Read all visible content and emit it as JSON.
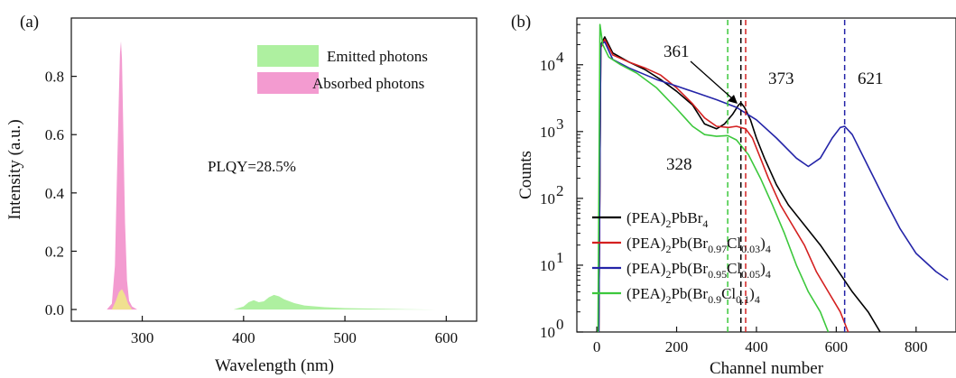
{
  "chart_data": [
    {
      "type": "area",
      "panel_label": "(a)",
      "xlabel": "Wavelength (nm)",
      "ylabel": "Intensity (a.u.)",
      "xlim": [
        230,
        630
      ],
      "ylim": [
        -0.04,
        1.0
      ],
      "xticks": [
        "300",
        "400",
        "500",
        "600"
      ],
      "xtick_values": [
        300,
        400,
        500,
        600
      ],
      "yticks": [
        "0.0",
        "0.2",
        "0.4",
        "0.6",
        "0.8"
      ],
      "ytick_values": [
        0.0,
        0.2,
        0.4,
        0.6,
        0.8
      ],
      "annotation": "PLQY=28.5%",
      "legend": [
        {
          "name": "Emitted  photons",
          "color": "#aef0a0"
        },
        {
          "name": "Absorbed photons",
          "color": "#f39bd0"
        }
      ],
      "series": [
        {
          "name": "Absorbed photons",
          "color": "#f39bd0",
          "x": [
            250,
            265,
            270,
            273,
            275,
            277,
            278,
            279,
            280,
            281,
            282,
            283,
            285,
            287,
            290,
            295,
            300,
            310
          ],
          "y": [
            0.0,
            0.0,
            0.02,
            0.15,
            0.45,
            0.75,
            0.88,
            0.92,
            0.86,
            0.68,
            0.48,
            0.3,
            0.1,
            0.03,
            0.01,
            0.0,
            0.0,
            0.0
          ]
        },
        {
          "name": "overlap",
          "color": "#f0e090",
          "x": [
            270,
            274,
            277,
            280,
            283,
            286,
            290
          ],
          "y": [
            0.0,
            0.03,
            0.06,
            0.07,
            0.05,
            0.02,
            0.0
          ]
        },
        {
          "name": "Emitted photons",
          "color": "#aef0a0",
          "x": [
            390,
            400,
            405,
            410,
            415,
            420,
            425,
            430,
            435,
            440,
            450,
            460,
            480,
            500,
            530,
            560,
            590,
            612
          ],
          "y": [
            0.0,
            0.01,
            0.025,
            0.032,
            0.025,
            0.028,
            0.042,
            0.05,
            0.045,
            0.035,
            0.022,
            0.014,
            0.008,
            0.005,
            0.003,
            0.001,
            0.0,
            0.0
          ]
        }
      ]
    },
    {
      "type": "line",
      "panel_label": "(b)",
      "xlabel": "Channel number",
      "ylabel": "Counts",
      "y_scale": "log",
      "xlim": [
        -50,
        900
      ],
      "ylim": [
        1,
        50000
      ],
      "xticks": [
        "0",
        "200",
        "400",
        "600",
        "800"
      ],
      "xtick_values": [
        0,
        200,
        400,
        600,
        800
      ],
      "ytick_exps": [
        "0",
        "1",
        "2",
        "3",
        "4"
      ],
      "ytick_values": [
        1,
        10,
        100,
        1000,
        10000
      ],
      "annotations": [
        {
          "text": "361",
          "color": "#000000",
          "x": 361
        },
        {
          "text": "373",
          "color": "#d42020",
          "x": 373
        },
        {
          "text": "621",
          "color": "#2424a8",
          "x": 621
        },
        {
          "text": "328",
          "color": "#3cc83c",
          "x": 328
        }
      ],
      "legend": [
        {
          "base": "(PEA)",
          "s1": "2",
          "m1": "PbBr",
          "s2": "4",
          "m2": "",
          "s3": "",
          "m3": "",
          "s4": "",
          "tail": "",
          "s5": ""
        },
        {
          "base": "(PEA)",
          "s1": "2",
          "m1": "Pb(Br",
          "s2": "0.97",
          "m2": "Cl",
          "s3": "0.03",
          "m3": ")",
          "s4": "4",
          "tail": "",
          "s5": ""
        },
        {
          "base": "(PEA)",
          "s1": "2",
          "m1": "Pb(Br",
          "s2": "0.95",
          "m2": "Cl",
          "s3": "0.05",
          "m3": ")",
          "s4": "4",
          "tail": "",
          "s5": ""
        },
        {
          "base": "(PEA)",
          "s1": "2",
          "m1": "Pb(Br",
          "s2": "0.9",
          "m2": "Cl",
          "s3": "0.1",
          "m3": ")",
          "s4": "4",
          "tail": "",
          "s5": ""
        }
      ],
      "series": [
        {
          "name": "(PEA)2PbBr4",
          "color": "#000000",
          "x": [
            5,
            10,
            20,
            40,
            80,
            120,
            160,
            200,
            240,
            270,
            300,
            320,
            340,
            355,
            361,
            370,
            385,
            400,
            420,
            450,
            480,
            520,
            560,
            600,
            640,
            680,
            710
          ],
          "y": [
            1,
            20000,
            26000,
            15000,
            11000,
            8500,
            6000,
            4000,
            2500,
            1300,
            1100,
            1300,
            1800,
            2500,
            2700,
            2300,
            1500,
            800,
            400,
            160,
            80,
            40,
            20,
            9,
            4,
            2,
            1
          ]
        },
        {
          "name": "(PEA)2Pb(Br0.97Cl0.03)4",
          "color": "#d42020",
          "x": [
            5,
            10,
            20,
            40,
            80,
            120,
            160,
            200,
            240,
            270,
            300,
            330,
            350,
            373,
            390,
            410,
            430,
            460,
            490,
            520,
            550,
            580,
            610,
            630
          ],
          "y": [
            1,
            18000,
            24000,
            14000,
            11000,
            9000,
            7000,
            4500,
            2600,
            1600,
            1200,
            1150,
            1200,
            1100,
            800,
            400,
            200,
            80,
            40,
            20,
            8,
            4,
            2,
            1
          ]
        },
        {
          "name": "(PEA)2Pb(Br0.95Cl0.05)4",
          "color": "#2424a8",
          "x": [
            5,
            10,
            20,
            40,
            80,
            150,
            200,
            250,
            300,
            350,
            400,
            450,
            500,
            530,
            560,
            590,
            610,
            621,
            640,
            680,
            720,
            760,
            800,
            850,
            880
          ],
          "y": [
            1,
            20000,
            22000,
            12000,
            9000,
            6000,
            4800,
            3800,
            3000,
            2300,
            1500,
            800,
            400,
            300,
            400,
            800,
            1150,
            1200,
            900,
            300,
            100,
            35,
            15,
            8,
            6
          ]
        },
        {
          "name": "(PEA)2Pb(Br0.9Cl0.1)4",
          "color": "#3cc83c",
          "x": [
            3,
            8,
            15,
            30,
            60,
            100,
            150,
            200,
            240,
            270,
            300,
            328,
            350,
            380,
            410,
            440,
            470,
            500,
            530,
            560,
            580
          ],
          "y": [
            1,
            40000,
            20000,
            13000,
            10000,
            7500,
            4500,
            2200,
            1200,
            900,
            850,
            870,
            750,
            450,
            200,
            80,
            30,
            10,
            4,
            2,
            1
          ]
        }
      ]
    }
  ]
}
